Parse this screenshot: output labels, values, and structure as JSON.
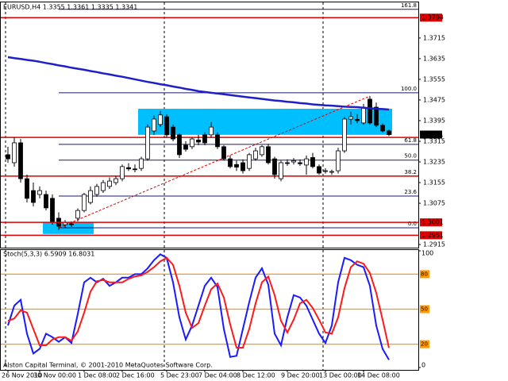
{
  "header": "EURUSD,H4  1.3355 1.3361 1.3335 1.3341",
  "footer": "Alston Capital Terminal, © 2001-2010 MetaQuotes Software Corp.",
  "chart_data": [
    {
      "type": "candlestick",
      "ylim": [
        1.2903,
        1.3853
      ],
      "yticks": [
        1.3715,
        1.3635,
        1.3555,
        1.3475,
        1.3395,
        1.3315,
        1.3235,
        1.3155,
        1.3075,
        1.2915
      ],
      "categories": [
        "26 Nov 2010",
        null,
        null,
        null,
        null,
        "30 Nov 00:00",
        null,
        null,
        null,
        null,
        null,
        null,
        "1 Dec 08:00",
        null,
        null,
        null,
        null,
        null,
        "2 Dec 16:00",
        null,
        null,
        null,
        null,
        null,
        null,
        "5 Dec 23:00",
        null,
        null,
        null,
        null,
        null,
        "7 Dec 04:00",
        null,
        null,
        null,
        null,
        null,
        "8 Dec 12:00",
        null,
        null,
        null,
        null,
        null,
        null,
        "9 Dec 20:00",
        null,
        null,
        null,
        null,
        null,
        "13 Dec 00:00",
        null,
        null,
        null,
        null,
        null,
        "14 Dec 08:00",
        null,
        null,
        null,
        null
      ],
      "open": [
        1.3263,
        1.3232,
        1.3309,
        1.317,
        1.3124,
        1.3109,
        1.3109,
        1.3094,
        1.3017,
        1.2992,
        1.2995,
        1.3017,
        1.3047,
        1.3078,
        1.3109,
        1.3124,
        1.314,
        1.3155,
        1.317,
        1.3213,
        1.3208,
        1.321,
        1.3247,
        1.3355,
        1.338,
        1.341,
        1.337,
        1.334,
        1.33,
        1.3294,
        1.332,
        1.334,
        1.334,
        1.334,
        1.3294,
        1.3247,
        1.3225,
        1.3232,
        1.321,
        1.3247,
        1.3263,
        1.3294,
        1.3247,
        1.317,
        1.3232,
        1.3235,
        1.3232,
        1.3223,
        1.3252,
        1.3217,
        1.3198,
        1.3195,
        1.3201,
        1.3278,
        1.3401,
        1.34,
        1.3386,
        1.3478,
        1.3447,
        1.3377,
        1.3355
      ],
      "high": [
        1.3294,
        1.333,
        1.3324,
        1.3186,
        1.3155,
        1.314,
        1.3124,
        1.3109,
        1.304,
        1.301,
        1.3005,
        1.3055,
        1.3115,
        1.314,
        1.315,
        1.3165,
        1.3175,
        1.318,
        1.3225,
        1.323,
        1.3225,
        1.3255,
        1.338,
        1.3415,
        1.3432,
        1.342,
        1.338,
        1.3345,
        1.3315,
        1.333,
        1.334,
        1.335,
        1.339,
        1.335,
        1.33,
        1.326,
        1.324,
        1.3245,
        1.327,
        1.329,
        1.33,
        1.3305,
        1.3255,
        1.324,
        1.3245,
        1.325,
        1.3245,
        1.326,
        1.327,
        1.3225,
        1.321,
        1.3205,
        1.329,
        1.341,
        1.343,
        1.342,
        1.346,
        1.349,
        1.3465,
        1.3385,
        1.3361
      ],
      "low": [
        1.3232,
        1.3217,
        1.3155,
        1.3078,
        1.3063,
        1.3094,
        1.3047,
        1.2992,
        1.2971,
        1.298,
        1.2983,
        1.3005,
        1.304,
        1.307,
        1.31,
        1.3115,
        1.313,
        1.3145,
        1.316,
        1.32,
        1.3195,
        1.32,
        1.324,
        1.334,
        1.337,
        1.333,
        1.3315,
        1.325,
        1.3275,
        1.3285,
        1.33,
        1.33,
        1.333,
        1.3285,
        1.324,
        1.321,
        1.32,
        1.319,
        1.32,
        1.324,
        1.3255,
        1.3225,
        1.317,
        1.316,
        1.322,
        1.3225,
        1.322,
        1.3185,
        1.321,
        1.3185,
        1.319,
        1.3185,
        1.319,
        1.327,
        1.338,
        1.3385,
        1.338,
        1.338,
        1.337,
        1.335,
        1.3335
      ],
      "close": [
        1.3247,
        1.3309,
        1.317,
        1.3094,
        1.3078,
        1.3124,
        1.3057,
        1.3001,
        1.2986,
        1.3001,
        1.2992,
        1.3047,
        1.3109,
        1.3124,
        1.314,
        1.3155,
        1.3161,
        1.317,
        1.3217,
        1.3208,
        1.3205,
        1.3247,
        1.337,
        1.3401,
        1.3417,
        1.334,
        1.3324,
        1.3263,
        1.3284,
        1.3324,
        1.3312,
        1.3309,
        1.337,
        1.3294,
        1.3247,
        1.3217,
        1.3215,
        1.3201,
        1.3263,
        1.3278,
        1.3294,
        1.3232,
        1.3186,
        1.3232,
        1.323,
        1.324,
        1.3228,
        1.3247,
        1.3217,
        1.3192,
        1.3201,
        1.3198,
        1.3278,
        1.3401,
        1.341,
        1.3395,
        1.3447,
        1.3386,
        1.3377,
        1.3355,
        1.3341
      ],
      "ma": {
        "color": "#1f1fc8",
        "values": [
          1.3641,
          1.3637,
          1.3634,
          1.363,
          1.3627,
          1.3623,
          1.3618,
          1.3614,
          1.3609,
          1.3605,
          1.36,
          1.3596,
          1.3592,
          1.3587,
          1.3583,
          1.3578,
          1.3574,
          1.3569,
          1.3565,
          1.356,
          1.3555,
          1.355,
          1.3545,
          1.3541,
          1.3536,
          1.3532,
          1.3527,
          1.3523,
          1.3518,
          1.3514,
          1.3509,
          1.3506,
          1.3503,
          1.35,
          1.3497,
          1.3494,
          1.3491,
          1.3488,
          1.3485,
          1.3482,
          1.3479,
          1.3476,
          1.3473,
          1.3471,
          1.3468,
          1.3466,
          1.3463,
          1.3461,
          1.3458,
          1.3456,
          1.3454,
          1.3453,
          1.3451,
          1.3449,
          1.3448,
          1.3447,
          1.3445,
          1.3443,
          1.3441,
          1.344,
          1.3438
        ]
      },
      "zones": [
        {
          "start": 21,
          "end": 61,
          "top": 1.3441,
          "bottom": 1.334,
          "color": "#00bfff"
        },
        {
          "start": 6,
          "end": 14,
          "top": 1.3001,
          "bottom": 1.2956,
          "color": "#00bfff"
        }
      ],
      "levels": [
        1.3794,
        1.3001,
        1.2951
      ],
      "lines": [
        1.333,
        1.318
      ],
      "level_color": "#e00000",
      "bid": 1.3341,
      "trendline": {
        "start": 8,
        "end": 57,
        "from": 1.298,
        "to": 1.349
      },
      "fib": [
        {
          "label": "161.8",
          "price": 1.3826
        },
        {
          "label": "100.0",
          "price": 1.3503
        },
        {
          "label": "61.8",
          "price": 1.3303
        },
        {
          "label": "50.0",
          "price": 1.3242
        },
        {
          "label": "38.2",
          "price": 1.318
        },
        {
          "label": "23.6",
          "price": 1.3103
        },
        {
          "label": "0.0",
          "price": 1.298
        }
      ],
      "fib_color": "#1a1a6e"
    },
    {
      "type": "line",
      "title": "Stoch(5,3,3) 6.5909 16.8031",
      "ylim": [
        0,
        100
      ],
      "yticks": [
        0,
        100
      ],
      "levels": [
        20,
        50,
        80
      ],
      "level_color": "#ff9a00",
      "series": [
        {
          "color": "#1a1aff",
          "values": [
            36,
            53,
            58,
            29,
            12,
            16,
            29,
            26,
            22,
            26,
            21,
            46,
            73,
            77,
            73,
            76,
            70,
            73,
            77,
            77,
            80,
            80,
            85,
            92,
            97,
            94,
            73,
            43,
            24,
            36,
            53,
            70,
            77,
            69,
            33,
            9,
            10,
            33,
            56,
            77,
            85,
            71,
            29,
            19,
            43,
            62,
            60,
            53,
            41,
            29,
            21,
            36,
            73,
            94,
            92,
            88,
            86,
            70,
            36,
            16,
            6.5909
          ]
        },
        {
          "color": "#ff1a1a",
          "values": [
            40,
            42,
            49,
            47,
            33,
            19,
            19,
            24,
            26,
            26,
            23,
            31,
            47,
            65,
            74,
            75,
            73,
            73,
            73,
            76,
            78,
            79,
            82,
            86,
            91,
            94,
            88,
            70,
            47,
            34,
            38,
            53,
            67,
            72,
            60,
            37,
            17,
            17,
            33,
            55,
            73,
            78,
            62,
            40,
            30,
            41,
            55,
            58,
            51,
            41,
            30,
            29,
            43,
            68,
            86,
            91,
            89,
            81,
            64,
            41,
            16.8031
          ]
        }
      ]
    }
  ]
}
